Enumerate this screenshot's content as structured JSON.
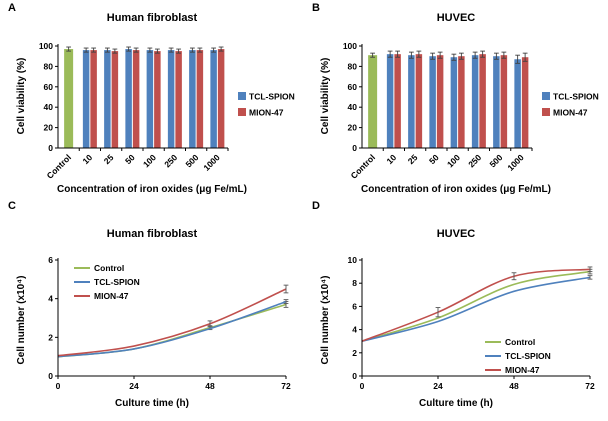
{
  "figure": {
    "background": "#ffffff"
  },
  "chart_data": [
    {
      "panel": "A",
      "type": "bar",
      "title": "Human fibroblast",
      "ylabel": "Cell viability (%)",
      "xlabel": "Concentration of iron oxides (μg Fe/mL)",
      "ylim": [
        0,
        100
      ],
      "yticks": [
        0,
        20,
        40,
        60,
        80,
        100
      ],
      "categories": [
        "Control",
        "10",
        "25",
        "50",
        "100",
        "250",
        "500",
        "1000"
      ],
      "series": [
        {
          "name": "Control",
          "color": "#9bbb59",
          "values": [
            97,
            null,
            null,
            null,
            null,
            null,
            null,
            null
          ],
          "errors": [
            2,
            null,
            null,
            null,
            null,
            null,
            null,
            null
          ]
        },
        {
          "name": "TCL-SPION",
          "color": "#4f81bd",
          "values": [
            null,
            96,
            96,
            97,
            96,
            96,
            96,
            96
          ],
          "errors": [
            null,
            2,
            2,
            2,
            2,
            2,
            2,
            2
          ]
        },
        {
          "name": "MION-47",
          "color": "#c0504d",
          "values": [
            null,
            96,
            95,
            96,
            95,
            95,
            96,
            97
          ],
          "errors": [
            null,
            2,
            2,
            2,
            2,
            2,
            2,
            2
          ]
        }
      ],
      "legend": [
        "TCL-SPION",
        "MION-47"
      ],
      "legend_pos": "right",
      "grid": false
    },
    {
      "panel": "B",
      "type": "bar",
      "title": "HUVEC",
      "ylabel": "Cell viability (%)",
      "xlabel": "Concentration of iron oxides (μg Fe/mL)",
      "ylim": [
        0,
        100
      ],
      "yticks": [
        0,
        20,
        40,
        60,
        80,
        100
      ],
      "categories": [
        "Control",
        "10",
        "25",
        "50",
        "100",
        "250",
        "500",
        "1000"
      ],
      "series": [
        {
          "name": "Control",
          "color": "#9bbb59",
          "values": [
            91,
            null,
            null,
            null,
            null,
            null,
            null,
            null
          ],
          "errors": [
            2,
            null,
            null,
            null,
            null,
            null,
            null,
            null
          ]
        },
        {
          "name": "TCL-SPION",
          "color": "#4f81bd",
          "values": [
            null,
            92,
            91,
            90,
            89,
            91,
            90,
            87
          ],
          "errors": [
            null,
            3,
            3,
            3,
            3,
            3,
            3,
            4
          ]
        },
        {
          "name": "MION-47",
          "color": "#c0504d",
          "values": [
            null,
            92,
            92,
            91,
            90,
            92,
            91,
            89
          ],
          "errors": [
            null,
            3,
            3,
            3,
            3,
            3,
            3,
            4
          ]
        }
      ],
      "legend": [
        "TCL-SPION",
        "MION-47"
      ],
      "legend_pos": "right",
      "grid": false
    },
    {
      "panel": "C",
      "type": "line",
      "title": "Human fibroblast",
      "ylabel": "Cell number (x10⁴)",
      "xlabel": "Culture time (h)",
      "xlim": [
        0,
        72
      ],
      "xticks": [
        0,
        24,
        48,
        72
      ],
      "ylim": [
        0,
        6
      ],
      "yticks": [
        0,
        2,
        4,
        6
      ],
      "x": [
        0,
        24,
        48,
        72
      ],
      "series": [
        {
          "name": "Control",
          "color": "#9bbb59",
          "values": [
            1.0,
            1.4,
            2.5,
            3.7
          ],
          "errors": [
            null,
            null,
            0.1,
            0.15
          ]
        },
        {
          "name": "TCL-SPION",
          "color": "#4f81bd",
          "values": [
            1.0,
            1.4,
            2.45,
            3.85
          ],
          "errors": [
            null,
            null,
            null,
            0.1
          ]
        },
        {
          "name": "MION-47",
          "color": "#c0504d",
          "values": [
            1.05,
            1.55,
            2.7,
            4.5
          ],
          "errors": [
            null,
            null,
            0.15,
            0.2
          ]
        }
      ],
      "legend": [
        "Control",
        "TCL-SPION",
        "MION-47"
      ],
      "legend_pos": "top-left",
      "grid": false
    },
    {
      "panel": "D",
      "type": "line",
      "title": "HUVEC",
      "ylabel": "Cell number (x10⁴)",
      "xlabel": "Culture time (h)",
      "xlim": [
        0,
        72
      ],
      "xticks": [
        0,
        24,
        48,
        72
      ],
      "ylim": [
        0,
        10
      ],
      "yticks": [
        0,
        2,
        4,
        6,
        8,
        10
      ],
      "x": [
        0,
        24,
        48,
        72
      ],
      "series": [
        {
          "name": "Control",
          "color": "#9bbb59",
          "values": [
            3.0,
            5.0,
            7.9,
            9.0
          ],
          "errors": [
            null,
            null,
            null,
            0.2
          ]
        },
        {
          "name": "TCL-SPION",
          "color": "#4f81bd",
          "values": [
            3.0,
            4.7,
            7.3,
            8.5
          ],
          "errors": [
            null,
            null,
            null,
            0.15
          ]
        },
        {
          "name": "MION-47",
          "color": "#c0504d",
          "values": [
            3.0,
            5.5,
            8.6,
            9.2
          ],
          "errors": [
            null,
            0.4,
            0.3,
            0.2
          ]
        }
      ],
      "legend": [
        "Control",
        "TCL-SPION",
        "MION-47"
      ],
      "legend_pos": "bottom-right",
      "grid": false
    }
  ]
}
